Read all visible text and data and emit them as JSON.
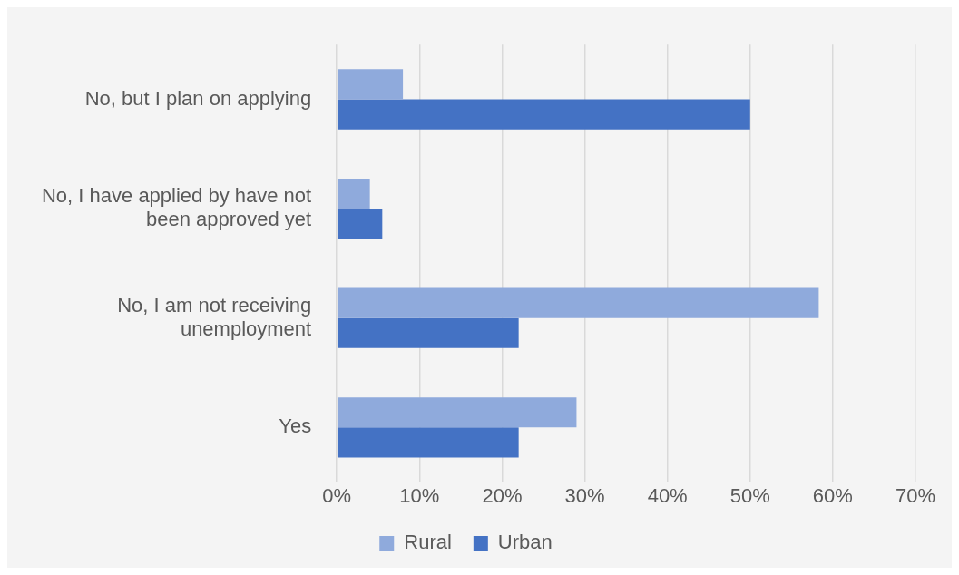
{
  "chart_data": {
    "type": "bar",
    "orientation": "horizontal",
    "categories": [
      "No, but I plan on applying",
      "No, I have applied by have not been approved yet",
      "No, I am not receiving unemployment",
      "Yes"
    ],
    "series": [
      {
        "name": "Rural",
        "color": "#8faadc",
        "values": [
          8,
          4,
          58.3,
          29
        ]
      },
      {
        "name": "Urban",
        "color": "#4472c4",
        "values": [
          50,
          5.5,
          22,
          22
        ]
      }
    ],
    "xlim": [
      0,
      70
    ],
    "xticks": [
      {
        "value": 0,
        "label": "0%"
      },
      {
        "value": 10,
        "label": "10%"
      },
      {
        "value": 20,
        "label": "20%"
      },
      {
        "value": 30,
        "label": "30%"
      },
      {
        "value": 40,
        "label": "40%"
      },
      {
        "value": 50,
        "label": "50%"
      },
      {
        "value": 60,
        "label": "60%"
      },
      {
        "value": 70,
        "label": "70%"
      }
    ],
    "grid": "x",
    "legend": "bottom"
  }
}
